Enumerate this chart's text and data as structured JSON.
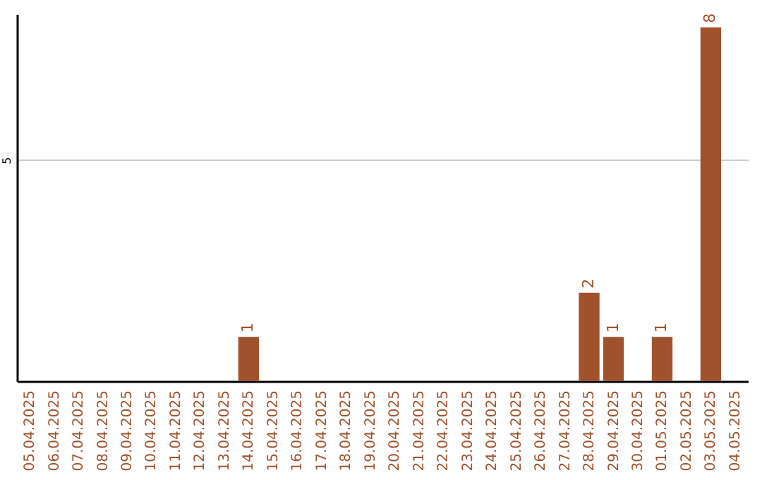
{
  "chart_data": {
    "type": "bar",
    "categories": [
      "05.04.2025",
      "06.04.2025",
      "07.04.2025",
      "08.04.2025",
      "09.04.2025",
      "10.04.2025",
      "11.04.2025",
      "12.04.2025",
      "13.04.2025",
      "14.04.2025",
      "15.04.2025",
      "16.04.2025",
      "17.04.2025",
      "18.04.2025",
      "19.04.2025",
      "20.04.2025",
      "21.04.2025",
      "22.04.2025",
      "23.04.2025",
      "24.04.2025",
      "25.04.2025",
      "26.04.2025",
      "27.04.2025",
      "28.04.2025",
      "29.04.2025",
      "30.04.2025",
      "01.05.2025",
      "02.05.2025",
      "03.05.2025",
      "04.05.2025"
    ],
    "values": [
      0,
      0,
      0,
      0,
      0,
      0,
      0,
      0,
      0,
      1,
      0,
      0,
      0,
      0,
      0,
      0,
      0,
      0,
      0,
      0,
      0,
      0,
      0,
      2,
      1,
      0,
      1,
      0,
      8,
      0
    ],
    "value_labels": [
      null,
      null,
      null,
      null,
      null,
      null,
      null,
      null,
      null,
      "1",
      null,
      null,
      null,
      null,
      null,
      null,
      null,
      null,
      null,
      null,
      null,
      null,
      null,
      "2",
      "1",
      null,
      "1",
      null,
      "8",
      null
    ],
    "color": "#a0522d",
    "ylim": [
      0,
      8.3
    ],
    "yticks": [
      5
    ],
    "grid": "y"
  }
}
